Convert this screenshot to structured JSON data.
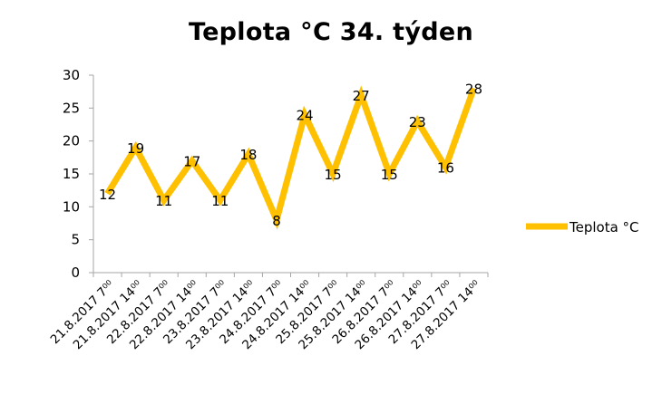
{
  "chart_data": {
    "type": "line",
    "title": "Teplota °C 34. týden",
    "xlabel": "",
    "ylabel": "",
    "categories": [
      "21.8.2017 7⁰⁰",
      "21.8.2017 14⁰⁰",
      "22.8.2017 7⁰⁰",
      "22.8.2017 14⁰⁰",
      "23.8.2017 7⁰⁰",
      "23.8.2017 14⁰⁰",
      "24.8.2017 7⁰⁰",
      "24.8.2017 14⁰⁰",
      "25.8.2017 7⁰⁰",
      "25.8.2017 14⁰⁰",
      "26.8.2017 7⁰⁰",
      "26.8.2017 14⁰⁰",
      "27.8.2017 7⁰⁰",
      "27.8.2017 14⁰⁰"
    ],
    "series": [
      {
        "name": "Teplota °C",
        "values": [
          12,
          19,
          11,
          17,
          11,
          18,
          8,
          24,
          15,
          27,
          15,
          23,
          16,
          28
        ],
        "color": "#FFC000"
      }
    ],
    "ylim": [
      0,
      30
    ],
    "yticks": [
      "0",
      "5",
      "10",
      "15",
      "20",
      "25",
      "30"
    ],
    "grid": false,
    "data_labels": true,
    "legend_position": "right",
    "axis_color": "#A6A6A6"
  }
}
